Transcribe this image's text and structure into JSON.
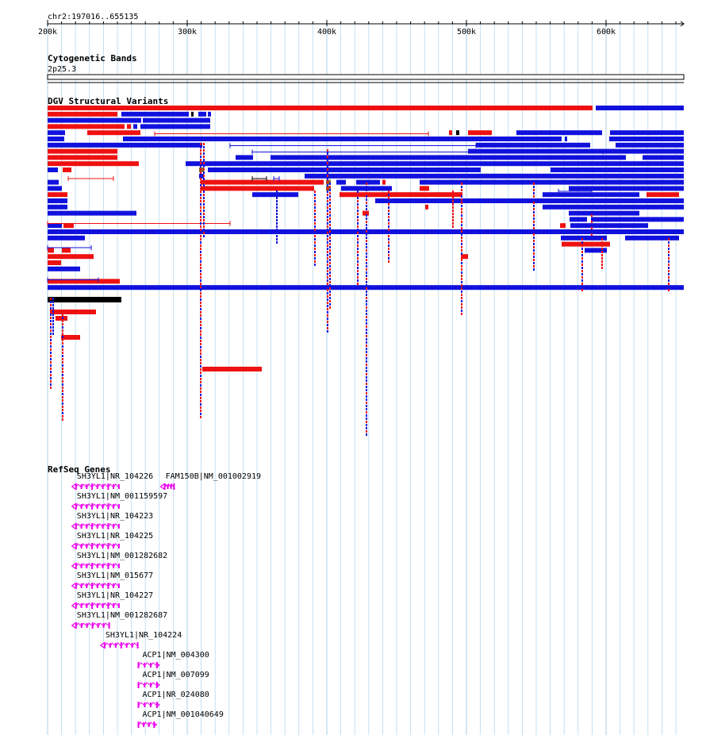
{
  "region_label": "chr2:197016..655135",
  "ruler": {
    "start": 200000,
    "end": 655135,
    "ticks": [
      "200k",
      "300k",
      "400k",
      "500k",
      "600k"
    ]
  },
  "colors": {
    "loss": "#ee1111",
    "gain": "#1111dd",
    "inversion": "#000000",
    "both": "#886633",
    "gene": "#ee00ee",
    "grid": "#b8d8ee"
  },
  "tracks": {
    "cytoband": {
      "title": "Cytogenetic Bands",
      "band": "2p25.3"
    },
    "dgv": {
      "title": "DGV Structural Variants"
    },
    "refseq": {
      "title": "RefSeq Genes"
    }
  },
  "genes": [
    {
      "label": "SH3YL1|NR_104226",
      "start": 217500,
      "end": 250500,
      "strand": "-"
    },
    {
      "label": "FAM150B|NM_001002919",
      "start": 281000,
      "end": 290000,
      "strand": "-"
    },
    {
      "label": "SH3YL1|NM_001159597",
      "start": 217500,
      "end": 250500,
      "strand": "-"
    },
    {
      "label": "SH3YL1|NR_104223",
      "start": 217500,
      "end": 250500,
      "strand": "-"
    },
    {
      "label": "SH3YL1|NR_104225",
      "start": 217500,
      "end": 250500,
      "strand": "-"
    },
    {
      "label": "SH3YL1|NM_001282682",
      "start": 217500,
      "end": 250500,
      "strand": "-"
    },
    {
      "label": "SH3YL1|NM_015677",
      "start": 217500,
      "end": 250500,
      "strand": "-"
    },
    {
      "label": "SH3YL1|NR_104227",
      "start": 217500,
      "end": 250500,
      "strand": "-"
    },
    {
      "label": "SH3YL1|NM_001282687",
      "start": 217500,
      "end": 243500,
      "strand": "-"
    },
    {
      "label": "SH3YL1|NR_104224",
      "start": 238000,
      "end": 264000,
      "strand": "-"
    },
    {
      "label": "ACP1|NM_004300",
      "start": 264500,
      "end": 280000,
      "strand": "+"
    },
    {
      "label": "ACP1|NM_007099",
      "start": 264500,
      "end": 280000,
      "strand": "+"
    },
    {
      "label": "ACP1|NR_024080",
      "start": 264500,
      "end": 280000,
      "strand": "+"
    },
    {
      "label": "ACP1|NM_001040649",
      "start": 264500,
      "end": 278000,
      "strand": "+"
    }
  ]
}
